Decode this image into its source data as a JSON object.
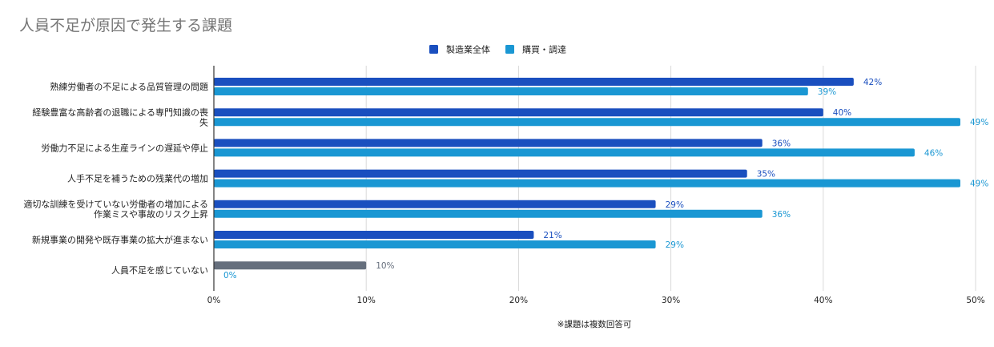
{
  "chart_data": {
    "type": "bar",
    "orientation": "horizontal",
    "title": "人員不足が原因で発生する課題",
    "note": "※課題は複数回答可",
    "categories": [
      [
        "熟練労働者の不足による品質管理の問題"
      ],
      [
        "経験豊富な高齢者の退職による専門知識の喪",
        "失"
      ],
      [
        "労働力不足による生産ラインの遅延や停止"
      ],
      [
        "人手不足を補うための残業代の増加"
      ],
      [
        "適切な訓練を受けていない労働者の増加による",
        "作業ミスや事故のリスク上昇"
      ],
      [
        "新規事業の開発や既存事業の拡大が進まない"
      ],
      [
        "人員不足を感じていない"
      ]
    ],
    "series": [
      {
        "name": "製造業全体",
        "color": "#1a4fbf",
        "values": [
          42,
          40,
          36,
          35,
          29,
          21,
          10
        ],
        "point_colors": [
          null,
          null,
          null,
          null,
          null,
          null,
          "#666f7d"
        ],
        "labels": [
          "42%",
          "40%",
          "36%",
          "35%",
          "29%",
          "21%",
          "10%"
        ]
      },
      {
        "name": "購買・調達",
        "color": "#1a97d3",
        "values": [
          39,
          49,
          46,
          49,
          36,
          29,
          0
        ],
        "labels": [
          "39%",
          "49%",
          "46%",
          "49%",
          "36%",
          "29%",
          "0%"
        ]
      }
    ],
    "xlim": [
      0,
      50
    ],
    "xticks": [
      0,
      10,
      20,
      30,
      40,
      50
    ],
    "xtick_labels": [
      "0%",
      "10%",
      "20%",
      "30%",
      "40%",
      "50%"
    ],
    "grid": true,
    "legend_position": "top-center",
    "colors": {
      "label_dark": "#1a4fbf",
      "label_light": "#1a97d3",
      "label_gray": "#666f7d"
    }
  }
}
